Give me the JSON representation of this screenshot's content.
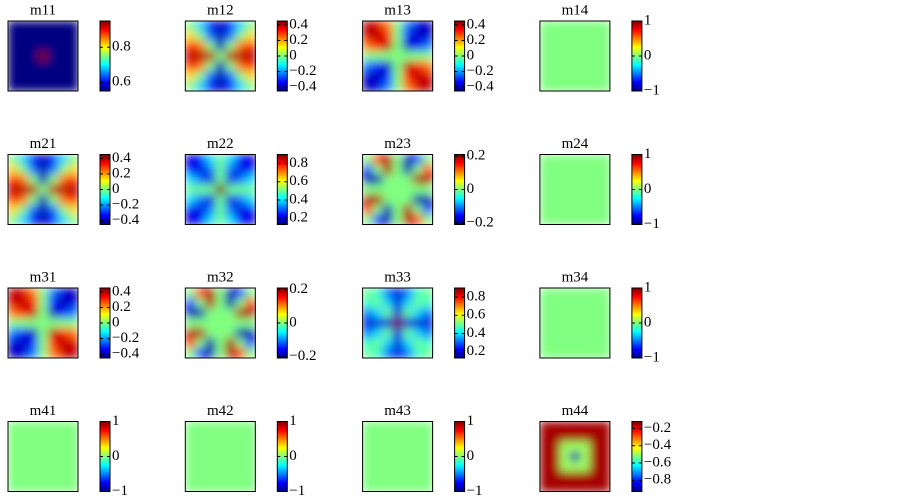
{
  "chart_data": [
    {
      "type": "heatmap",
      "title": "m11",
      "colormap": "jet",
      "clim": [
        0.55,
        0.95
      ],
      "cticks": [
        0.6,
        0.8
      ],
      "z": [
        [
          0.55,
          0.55,
          0.55,
          0.55,
          0.55,
          0.55,
          0.55
        ],
        [
          0.55,
          0.55,
          0.55,
          0.55,
          0.55,
          0.55,
          0.55
        ],
        [
          0.55,
          0.55,
          0.55,
          0.55,
          0.55,
          0.55,
          0.55
        ],
        [
          0.55,
          0.55,
          0.55,
          0.95,
          0.55,
          0.55,
          0.55
        ],
        [
          0.55,
          0.55,
          0.55,
          0.55,
          0.55,
          0.55,
          0.55
        ],
        [
          0.55,
          0.55,
          0.55,
          0.55,
          0.55,
          0.55,
          0.55
        ],
        [
          0.55,
          0.55,
          0.55,
          0.55,
          0.55,
          0.55,
          0.55
        ]
      ]
    },
    {
      "type": "heatmap",
      "title": "m12",
      "colormap": "jet",
      "clim": [
        -0.45,
        0.45
      ],
      "cticks": [
        0.4,
        0.2,
        0,
        {
          "value": -0.2,
          "label": "−0.2"
        },
        {
          "value": -0.4,
          "label": "−0.4"
        }
      ],
      "z": [
        [
          0,
          -0.15,
          -0.32,
          -0.4,
          -0.32,
          -0.15,
          0
        ],
        [
          0.15,
          0,
          -0.24,
          -0.4,
          -0.24,
          0,
          0.15
        ],
        [
          0.32,
          0.24,
          0,
          -0.4,
          0,
          0.24,
          0.32
        ],
        [
          0.4,
          0.4,
          0.4,
          0,
          0.4,
          0.4,
          0.4
        ],
        [
          0.32,
          0.24,
          0,
          -0.4,
          0,
          0.24,
          0.32
        ],
        [
          0.15,
          0,
          -0.24,
          -0.4,
          -0.24,
          0,
          0.15
        ],
        [
          0,
          -0.15,
          -0.32,
          -0.4,
          -0.32,
          -0.15,
          0
        ]
      ]
    },
    {
      "type": "heatmap",
      "title": "m13",
      "colormap": "jet",
      "clim": [
        -0.45,
        0.45
      ],
      "cticks": [
        0.4,
        0.2,
        0,
        {
          "value": -0.2,
          "label": "−0.2"
        },
        {
          "value": -0.4,
          "label": "−0.4"
        }
      ],
      "z": [
        [
          0.4,
          0.37,
          0.24,
          0,
          -0.24,
          -0.37,
          -0.4
        ],
        [
          0.37,
          0.4,
          0.32,
          0,
          -0.32,
          -0.4,
          -0.37
        ],
        [
          0.24,
          0.32,
          0.4,
          0,
          -0.4,
          -0.32,
          -0.24
        ],
        [
          0,
          0,
          0,
          0,
          0,
          0,
          0
        ],
        [
          -0.24,
          -0.32,
          -0.4,
          0,
          0.4,
          0.32,
          0.24
        ],
        [
          -0.37,
          -0.4,
          -0.32,
          0,
          0.32,
          0.4,
          0.37
        ],
        [
          -0.4,
          -0.37,
          -0.24,
          0,
          0.24,
          0.37,
          0.4
        ]
      ]
    },
    {
      "type": "heatmap",
      "title": "m14",
      "colormap": "jet",
      "clim": [
        -1,
        1
      ],
      "cticks": [
        1,
        0,
        {
          "value": -1,
          "label": "−1"
        }
      ],
      "z": [
        [
          0
        ]
      ]
    },
    {
      "type": "heatmap",
      "title": "m21",
      "colormap": "jet",
      "clim": [
        -0.45,
        0.45
      ],
      "cticks": [
        0.4,
        0.2,
        0,
        {
          "value": -0.2,
          "label": "−0.2"
        },
        {
          "value": -0.4,
          "label": "−0.4"
        }
      ],
      "z": [
        [
          0,
          -0.15,
          -0.32,
          -0.4,
          -0.32,
          -0.15,
          0
        ],
        [
          0.15,
          0,
          -0.24,
          -0.4,
          -0.24,
          0,
          0.15
        ],
        [
          0.32,
          0.24,
          0,
          -0.4,
          0,
          0.24,
          0.32
        ],
        [
          0.4,
          0.4,
          0.4,
          0,
          0.4,
          0.4,
          0.4
        ],
        [
          0.32,
          0.24,
          0,
          -0.4,
          0,
          0.24,
          0.32
        ],
        [
          0.15,
          0,
          -0.24,
          -0.4,
          -0.24,
          0,
          0.15
        ],
        [
          0,
          -0.15,
          -0.32,
          -0.4,
          -0.32,
          -0.15,
          0
        ]
      ]
    },
    {
      "type": "heatmap",
      "title": "m22",
      "colormap": "jet",
      "clim": [
        0.13,
        0.9
      ],
      "cticks": [
        0.8,
        0.6,
        0.4,
        0.2
      ],
      "z": [
        [
          0.2,
          0.24,
          0.39,
          0.5,
          0.39,
          0.24,
          0.2
        ],
        [
          0.24,
          0.2,
          0.31,
          0.5,
          0.31,
          0.2,
          0.24
        ],
        [
          0.39,
          0.31,
          0.2,
          0.5,
          0.2,
          0.31,
          0.39
        ],
        [
          0.5,
          0.5,
          0.5,
          0.9,
          0.5,
          0.5,
          0.5
        ],
        [
          0.39,
          0.31,
          0.2,
          0.5,
          0.2,
          0.31,
          0.39
        ],
        [
          0.24,
          0.2,
          0.31,
          0.5,
          0.31,
          0.2,
          0.24
        ],
        [
          0.2,
          0.24,
          0.39,
          0.5,
          0.39,
          0.24,
          0.2
        ]
      ]
    },
    {
      "type": "heatmap",
      "title": "m23",
      "colormap": "jet",
      "clim": [
        -0.21,
        0.21
      ],
      "cticks": [
        0.2,
        0,
        {
          "value": -0.2,
          "label": "−0.2"
        }
      ],
      "z": [
        [
          0,
          0.14,
          0.19,
          0,
          -0.19,
          -0.14,
          0
        ],
        [
          -0.14,
          0,
          0.19,
          0,
          -0.19,
          0,
          0.14
        ],
        [
          -0.19,
          -0.19,
          0,
          0,
          0,
          0.19,
          0.19
        ],
        [
          0,
          0,
          0,
          0,
          0,
          0,
          0
        ],
        [
          0.19,
          0.19,
          0,
          0,
          0,
          -0.19,
          -0.19
        ],
        [
          0.14,
          0,
          -0.19,
          0,
          0.19,
          0,
          -0.14
        ],
        [
          0,
          -0.14,
          -0.19,
          0,
          0.19,
          0.14,
          0
        ]
      ]
    },
    {
      "type": "heatmap",
      "title": "m24",
      "colormap": "jet",
      "clim": [
        -1,
        1
      ],
      "cticks": [
        1,
        0,
        {
          "value": -1,
          "label": "−1"
        }
      ],
      "z": [
        [
          0
        ]
      ]
    },
    {
      "type": "heatmap",
      "title": "m31",
      "colormap": "jet",
      "clim": [
        -0.45,
        0.45
      ],
      "cticks": [
        0.4,
        0.2,
        0,
        {
          "value": -0.2,
          "label": "−0.2"
        },
        {
          "value": -0.4,
          "label": "−0.4"
        }
      ],
      "z": [
        [
          0.4,
          0.37,
          0.24,
          0,
          -0.24,
          -0.37,
          -0.4
        ],
        [
          0.37,
          0.4,
          0.32,
          0,
          -0.32,
          -0.4,
          -0.37
        ],
        [
          0.24,
          0.32,
          0.4,
          0,
          -0.4,
          -0.32,
          -0.24
        ],
        [
          0,
          0,
          0,
          0,
          0,
          0,
          0
        ],
        [
          -0.24,
          -0.32,
          -0.4,
          0,
          0.4,
          0.32,
          0.24
        ],
        [
          -0.37,
          -0.4,
          -0.32,
          0,
          0.32,
          0.4,
          0.37
        ],
        [
          -0.4,
          -0.37,
          -0.24,
          0,
          0.24,
          0.37,
          0.4
        ]
      ]
    },
    {
      "type": "heatmap",
      "title": "m32",
      "colormap": "jet",
      "clim": [
        -0.21,
        0.21
      ],
      "cticks": [
        0.2,
        0,
        {
          "value": -0.2,
          "label": "−0.2"
        }
      ],
      "z": [
        [
          0,
          0.14,
          0.19,
          0,
          -0.19,
          -0.14,
          0
        ],
        [
          -0.14,
          0,
          0.19,
          0,
          -0.19,
          0,
          0.14
        ],
        [
          -0.19,
          -0.19,
          0,
          0,
          0,
          0.19,
          0.19
        ],
        [
          0,
          0,
          0,
          0,
          0,
          0,
          0
        ],
        [
          0.19,
          0.19,
          0,
          0,
          0,
          -0.19,
          -0.19
        ],
        [
          0.14,
          0,
          -0.19,
          0,
          0.19,
          0,
          -0.14
        ],
        [
          0,
          -0.14,
          -0.19,
          0,
          0.19,
          0.14,
          0
        ]
      ]
    },
    {
      "type": "heatmap",
      "title": "m33",
      "colormap": "jet",
      "clim": [
        0.13,
        0.9
      ],
      "cticks": [
        0.8,
        0.6,
        0.4,
        0.2
      ],
      "z": [
        [
          0.5,
          0.46,
          0.31,
          0.2,
          0.31,
          0.46,
          0.5
        ],
        [
          0.46,
          0.5,
          0.39,
          0.2,
          0.39,
          0.5,
          0.46
        ],
        [
          0.31,
          0.39,
          0.5,
          0.2,
          0.5,
          0.39,
          0.31
        ],
        [
          0.2,
          0.2,
          0.2,
          0.9,
          0.2,
          0.2,
          0.2
        ],
        [
          0.31,
          0.39,
          0.5,
          0.2,
          0.5,
          0.39,
          0.31
        ],
        [
          0.46,
          0.5,
          0.39,
          0.2,
          0.39,
          0.5,
          0.46
        ],
        [
          0.5,
          0.46,
          0.31,
          0.2,
          0.31,
          0.46,
          0.5
        ]
      ]
    },
    {
      "type": "heatmap",
      "title": "m34",
      "colormap": "jet",
      "clim": [
        -1,
        1
      ],
      "cticks": [
        1,
        0,
        {
          "value": -1,
          "label": "−1"
        }
      ],
      "z": [
        [
          0
        ]
      ]
    },
    {
      "type": "heatmap",
      "title": "m41",
      "colormap": "jet",
      "clim": [
        -1,
        1
      ],
      "cticks": [
        1,
        0,
        {
          "value": -1,
          "label": "−1"
        }
      ],
      "z": [
        [
          0
        ]
      ]
    },
    {
      "type": "heatmap",
      "title": "m42",
      "colormap": "jet",
      "clim": [
        -1,
        1
      ],
      "cticks": [
        1,
        0,
        {
          "value": -1,
          "label": "−1"
        }
      ],
      "z": [
        [
          0
        ]
      ]
    },
    {
      "type": "heatmap",
      "title": "m43",
      "colormap": "jet",
      "clim": [
        -1,
        1
      ],
      "cticks": [
        1,
        0,
        {
          "value": -1,
          "label": "−1"
        }
      ],
      "z": [
        [
          0
        ]
      ]
    },
    {
      "type": "heatmap",
      "title": "m44",
      "colormap": "jet",
      "clim": [
        -0.93,
        -0.12
      ],
      "cticks": [
        {
          "value": -0.2,
          "label": "−0.2"
        },
        {
          "value": -0.4,
          "label": "−0.4"
        },
        {
          "value": -0.6,
          "label": "−0.6"
        },
        {
          "value": -0.8,
          "label": "−0.8"
        }
      ],
      "z": [
        [
          -0.15,
          -0.15,
          -0.15,
          -0.15,
          -0.15,
          -0.15,
          -0.15
        ],
        [
          -0.15,
          -0.15,
          -0.15,
          -0.15,
          -0.15,
          -0.15,
          -0.15
        ],
        [
          -0.15,
          -0.15,
          -0.5,
          -0.5,
          -0.5,
          -0.15,
          -0.15
        ],
        [
          -0.15,
          -0.15,
          -0.5,
          -0.9,
          -0.5,
          -0.15,
          -0.15
        ],
        [
          -0.15,
          -0.15,
          -0.5,
          -0.5,
          -0.5,
          -0.15,
          -0.15
        ],
        [
          -0.15,
          -0.15,
          -0.15,
          -0.15,
          -0.15,
          -0.15,
          -0.15
        ],
        [
          -0.15,
          -0.15,
          -0.15,
          -0.15,
          -0.15,
          -0.15,
          -0.15
        ]
      ]
    }
  ]
}
